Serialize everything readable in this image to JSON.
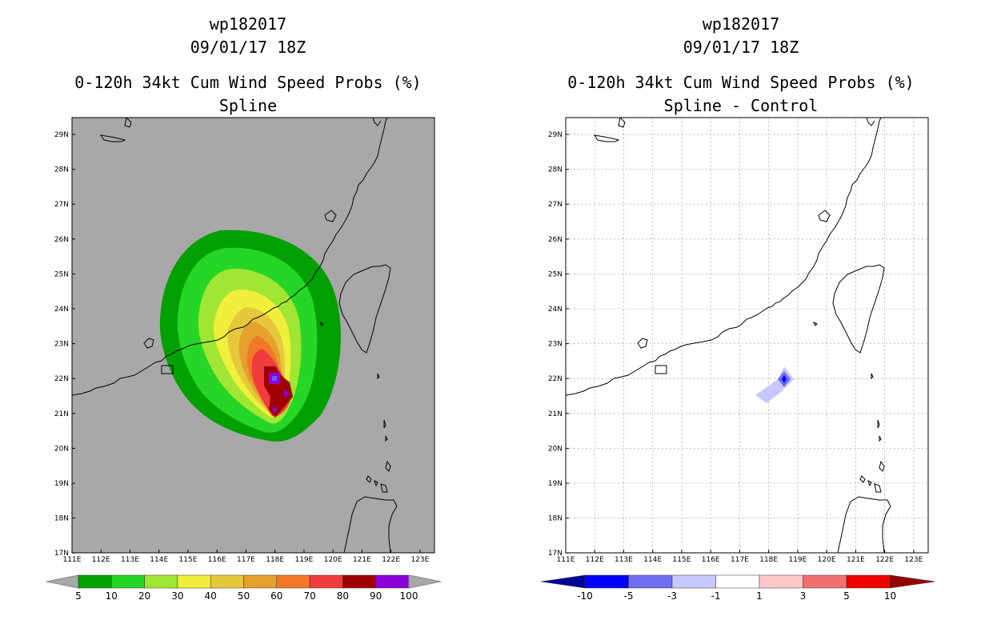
{
  "panels": [
    {
      "id": "left",
      "title1": "wp182017",
      "title2": "09/01/17 18Z",
      "title3": "0-120h 34kt Cum Wind Speed Probs (%)",
      "title4": "Spline",
      "background": "#a8a8a8",
      "lon_labels": [
        "111E",
        "112E",
        "113E",
        "114E",
        "115E",
        "116E",
        "117E",
        "118E",
        "119E",
        "120E",
        "121E",
        "122E",
        "123E"
      ],
      "lat_labels": [
        "29N",
        "28N",
        "27N",
        "26N",
        "25N",
        "24N",
        "23N",
        "22N",
        "21N",
        "20N",
        "19N",
        "18N",
        "17N"
      ],
      "colorbar": {
        "colors": [
          "#00a000",
          "#26d626",
          "#a0e632",
          "#f0f03c",
          "#e6c83c",
          "#e6a02e",
          "#f07828",
          "#f03c3c",
          "#a00000",
          "#8c00dc"
        ],
        "labels": [
          "5",
          "10",
          "20",
          "30",
          "40",
          "50",
          "60",
          "70",
          "80",
          "90",
          "100"
        ]
      }
    },
    {
      "id": "right",
      "title1": "wp182017",
      "title2": "09/01/17 18Z",
      "title3": "0-120h 34kt Cum Wind Speed Probs (%)",
      "title4": "Spline - Control",
      "background": "#ffffff",
      "lon_labels": [
        "111E",
        "112E",
        "113E",
        "114E",
        "115E",
        "116E",
        "117E",
        "118E",
        "119E",
        "120E",
        "121E",
        "122E",
        "123E"
      ],
      "lat_labels": [
        "29N",
        "28N",
        "27N",
        "26N",
        "25N",
        "24N",
        "23N",
        "22N",
        "21N",
        "20N",
        "19N",
        "18N",
        "17N"
      ],
      "colorbar": {
        "colors": [
          "#000096",
          "#0000ff",
          "#6e6ef0",
          "#c8c8ff",
          "#ffffff",
          "#ffc8c8",
          "#f07070",
          "#f00000",
          "#960000"
        ],
        "labels": [
          "-10",
          "-5",
          "-3",
          "-1",
          "1",
          "3",
          "5",
          "10"
        ]
      }
    }
  ]
}
